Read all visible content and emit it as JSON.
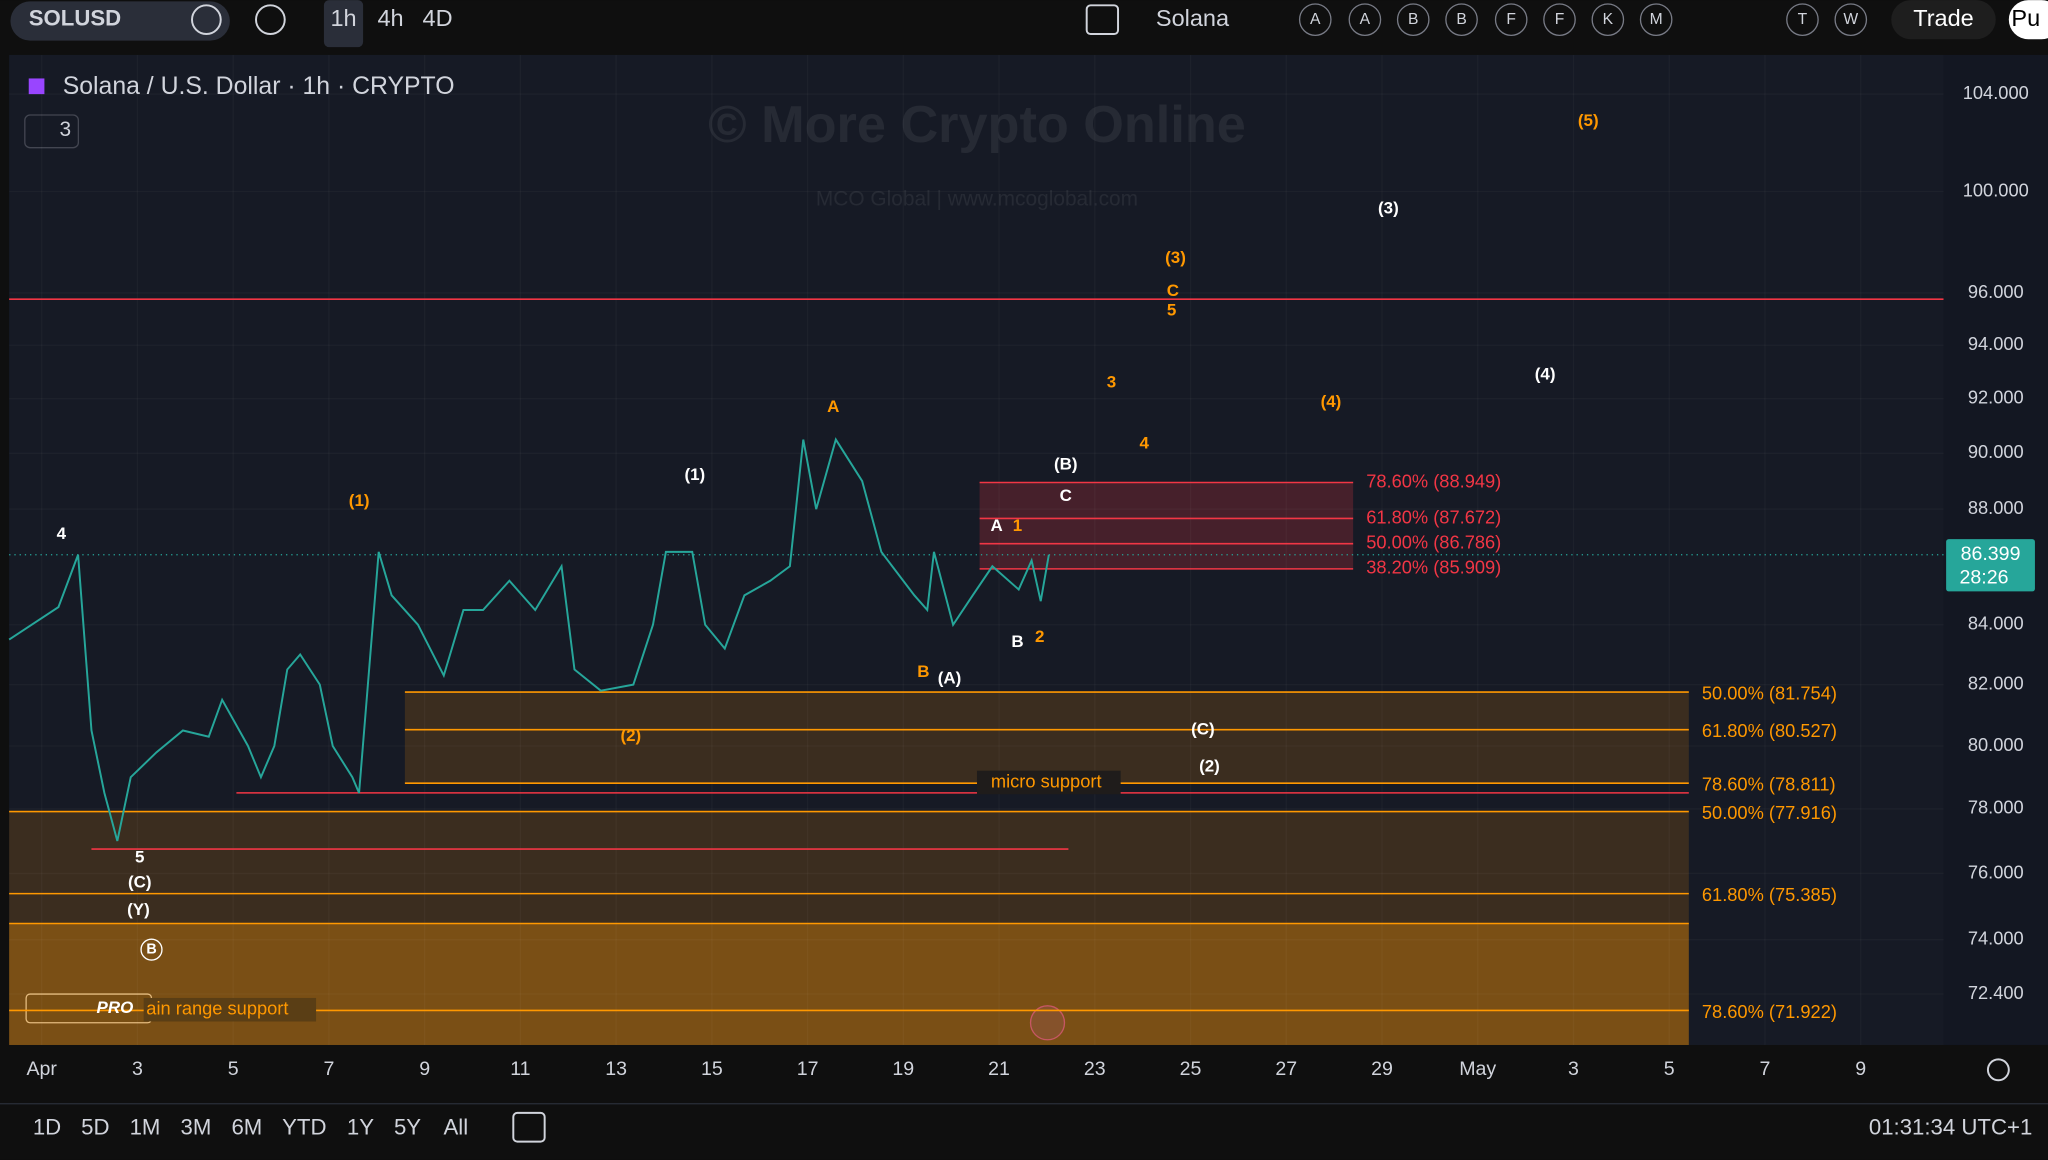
{
  "toolbar": {
    "symbol": "SOLUSD",
    "intervals": [
      "1h",
      "4h",
      "4D"
    ],
    "layout": "Solana",
    "letters": [
      "A",
      "A",
      "B",
      "B",
      "F",
      "F",
      "K",
      "M"
    ],
    "letters_right": [
      "T",
      "W"
    ],
    "trade": "Trade",
    "publish": "Pu"
  },
  "chart": {
    "legend": "Solana / U.S. Dollar · 1h · CRYPTO",
    "indicator_count": "3",
    "watermark": "© More Crypto Online",
    "watermark_sub": "MCO Global  |  www.mcoglobal.com",
    "logo": "PRO",
    "log_scale": true,
    "ylim": [
      70.93,
      105.65
    ],
    "yticks": [
      {
        "value": 104,
        "label": "104.000"
      },
      {
        "value": 100,
        "label": "100.000"
      },
      {
        "value": 96,
        "label": "96.000"
      },
      {
        "value": 94,
        "label": "94.000"
      },
      {
        "value": 92,
        "label": "92.000"
      },
      {
        "value": 90,
        "label": "90.000"
      },
      {
        "value": 88,
        "label": "88.000"
      },
      {
        "value": 84,
        "label": "84.000"
      },
      {
        "value": 82,
        "label": "82.000"
      },
      {
        "value": 80,
        "label": "80.000"
      },
      {
        "value": 78,
        "label": "78.000"
      },
      {
        "value": 76,
        "label": "76.000"
      },
      {
        "value": 74,
        "label": "74.000"
      },
      {
        "value": 72.4,
        "label": "72.400"
      }
    ],
    "xlim": [
      0.32,
      40.73
    ],
    "xticks": [
      {
        "value": 1,
        "label": "Apr"
      },
      3,
      5,
      7,
      9,
      11,
      13,
      15,
      17,
      19,
      21,
      23,
      25,
      27,
      29,
      {
        "value": 31,
        "label": "May"
      },
      {
        "value": 33,
        "label": "3"
      },
      {
        "value": 35,
        "label": "5"
      },
      {
        "value": 37,
        "label": "7"
      },
      {
        "value": 39,
        "label": "9"
      }
    ],
    "price": {
      "color": "#26a69a",
      "x": [
        0.32,
        1.35,
        1.76,
        2.04,
        2.31,
        2.58,
        2.86,
        3.4,
        3.95,
        4.49,
        4.77,
        5.31,
        5.58,
        5.86,
        6.13,
        6.4,
        6.81,
        7.08,
        7.49,
        7.63,
        8.04,
        8.31,
        8.86,
        9.4,
        9.81,
        10.22,
        10.77,
        11.31,
        11.86,
        12.13,
        12.68,
        13.36,
        13.77,
        14.04,
        14.59,
        14.86,
        15.27,
        15.68,
        16.22,
        16.63,
        16.91,
        17.18,
        17.59,
        18.14,
        18.54,
        19.23,
        19.5,
        19.64,
        20.04,
        20.45,
        20.86,
        21.41,
        21.68,
        21.87,
        22.04
      ],
      "values": [
        83.5,
        84.6,
        86.4,
        80.5,
        78.5,
        77,
        79,
        79.8,
        80.5,
        80.3,
        81.5,
        80,
        79,
        80,
        82.5,
        83,
        82,
        80,
        79,
        78.5,
        86.5,
        85,
        84,
        82.3,
        84.5,
        84.5,
        85.5,
        84.5,
        86,
        82.5,
        81.8,
        82,
        84,
        86.5,
        86.5,
        84,
        83.2,
        85,
        85.5,
        86,
        90.5,
        88,
        90.5,
        89,
        86.5,
        85,
        84.5,
        86.5,
        84,
        85,
        86,
        85.2,
        86.2,
        84.8,
        86.4
      ]
    },
    "last_price": 86.399,
    "countdown": "28:26",
    "fib_levels": [
      {
        "label": "78.60% (88.949)",
        "value": 88.949,
        "color": "#f23645"
      },
      {
        "label": "61.80% (87.672)",
        "value": 87.672,
        "color": "#f23645"
      },
      {
        "label": "50.00% (86.786)",
        "value": 86.786,
        "color": "#f23645"
      },
      {
        "label": "38.20% (85.909)",
        "value": 85.909,
        "color": "#f23645"
      },
      {
        "label": "50.00% (81.754)",
        "value": 81.754,
        "color": "#ff9800"
      },
      {
        "label": "61.80% (80.527)",
        "value": 80.527,
        "color": "#ff9800"
      },
      {
        "label": "78.60% (78.811)",
        "value": 78.811,
        "color": "#ff9800"
      },
      {
        "label": "50.00% (77.916)",
        "value": 77.916,
        "color": "#ff9800"
      },
      {
        "label": "61.80% (75.385)",
        "value": 75.385,
        "color": "#ff9800"
      },
      {
        "label": "78.60% (71.922)",
        "value": 71.922,
        "color": "#ff9800"
      }
    ],
    "support_labels": [
      "micro support",
      "ain range support"
    ],
    "annotations": [
      {
        "text": "4",
        "color": "#ffffff"
      },
      {
        "text": "5",
        "color": "#ffffff"
      },
      {
        "text": "(C)",
        "color": "#ffffff"
      },
      {
        "text": "(Y)",
        "color": "#ffffff"
      },
      {
        "text": "B",
        "color": "#ffffff"
      },
      {
        "text": "(1)",
        "color": "#ffffff"
      },
      {
        "text": "(B)",
        "color": "#ffffff"
      },
      {
        "text": "C",
        "color": "#ffffff"
      },
      {
        "text": "A",
        "color": "#ffffff"
      },
      {
        "text": "B",
        "color": "#ffffff"
      },
      {
        "text": "(A)",
        "color": "#ffffff"
      },
      {
        "text": "(C)",
        "color": "#ffffff"
      },
      {
        "text": "(2)",
        "color": "#ffffff"
      },
      {
        "text": "(3)",
        "color": "#ffffff"
      },
      {
        "text": "(4)",
        "color": "#ffffff"
      },
      {
        "text": "(1)",
        "color": "#ff9800"
      },
      {
        "text": "(2)",
        "color": "#ff9800"
      },
      {
        "text": "A",
        "color": "#ff9800"
      },
      {
        "text": "B",
        "color": "#ff9800"
      },
      {
        "text": "1",
        "color": "#ff9800"
      },
      {
        "text": "2",
        "color": "#ff9800"
      },
      {
        "text": "3",
        "color": "#ff9800"
      },
      {
        "text": "4",
        "color": "#ff9800"
      },
      {
        "text": "(3)",
        "color": "#ff9800"
      },
      {
        "text": "C",
        "color": "#ff9800"
      },
      {
        "text": "5",
        "color": "#ff9800"
      },
      {
        "text": "(4)",
        "color": "#ff9800"
      },
      {
        "text": "(5)",
        "color": "#ff9800"
      }
    ]
  },
  "bottom": {
    "ranges": [
      "1D",
      "5D",
      "1M",
      "3M",
      "6M",
      "YTD",
      "1Y",
      "5Y",
      "All"
    ],
    "clock": "01:31:34 UTC+1"
  }
}
